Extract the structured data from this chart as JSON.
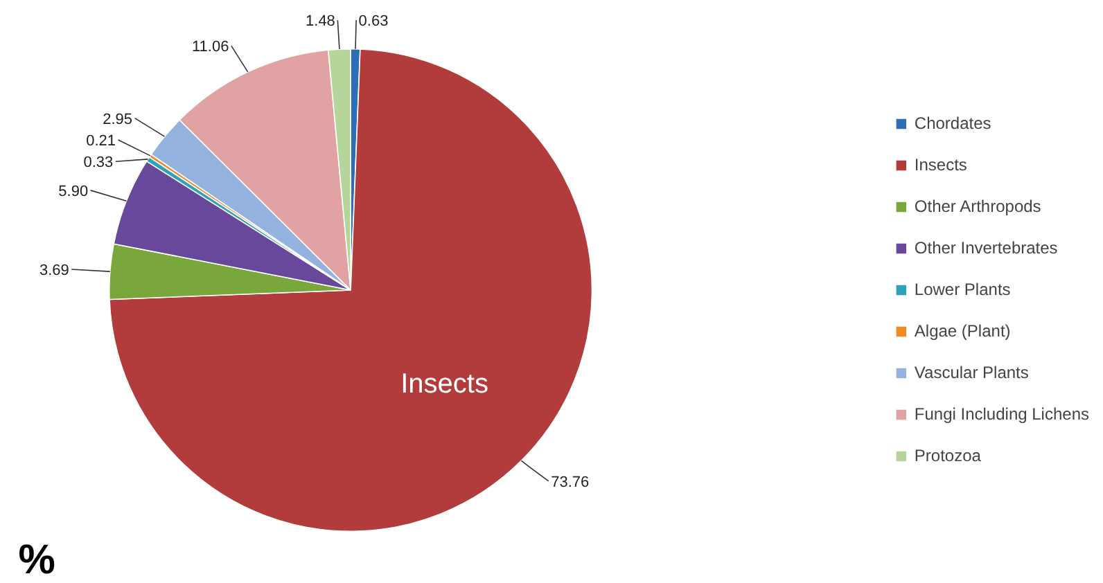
{
  "chart_data": {
    "type": "pie",
    "categories": [
      "Chordates",
      "Insects",
      "Other Arthropods",
      "Other Invertebrates",
      "Lower Plants",
      "Algae (Plant)",
      "Vascular Plants",
      "Fungi Including Lichens",
      "Protozoa"
    ],
    "values": [
      0.63,
      73.76,
      3.69,
      5.9,
      0.33,
      0.21,
      2.95,
      11.06,
      1.48
    ],
    "value_labels": [
      "0.63",
      "73.76",
      "3.69",
      "5.90",
      "0.33",
      "0.21",
      "2.95",
      "11.06",
      "1.48"
    ],
    "colors": [
      "#2f6db5",
      "#b23b3b",
      "#79a73b",
      "#67489a",
      "#2ba3bb",
      "#f08a24",
      "#93b3de",
      "#e0a2a2",
      "#b5d59b"
    ],
    "legend": "right",
    "annotations": [
      {
        "text": "Insects",
        "x": "Insects"
      },
      "%"
    ]
  }
}
